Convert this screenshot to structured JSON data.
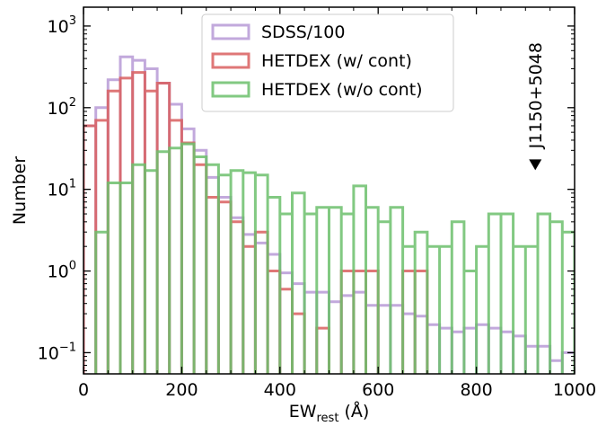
{
  "chart_data": {
    "type": "histogram",
    "xlabel_main": "EW",
    "xlabel_sub": "rest",
    "xlabel_unit": " (Å)",
    "ylabel": "Number",
    "xlim": [
      0,
      1000
    ],
    "ylim": [
      0.055,
      1700
    ],
    "yscale": "log",
    "grid": false,
    "legend_position": "top-center",
    "x_ticks": [
      0,
      200,
      400,
      600,
      800,
      1000
    ],
    "x_tick_labels": [
      "0",
      "200",
      "400",
      "600",
      "800",
      "1000"
    ],
    "y_ticks": [
      0.1,
      1,
      10,
      100,
      1000
    ],
    "y_tick_labels": [
      {
        "base": "10",
        "exp": "−1"
      },
      {
        "base": "10",
        "exp": "0"
      },
      {
        "base": "10",
        "exp": "1"
      },
      {
        "base": "10",
        "exp": "2"
      },
      {
        "base": "10",
        "exp": "3"
      }
    ],
    "bin_width": 25,
    "series": [
      {
        "name": "SDSS/100",
        "color": "#b79ad6",
        "values": [
          60,
          100,
          220,
          420,
          380,
          300,
          200,
          110,
          55,
          30,
          14,
          8,
          4.5,
          2.8,
          2.2,
          1.6,
          0.95,
          0.7,
          0.55,
          0.55,
          0.42,
          0.5,
          0.55,
          0.38,
          0.38,
          0.38,
          0.3,
          0.28,
          0.22,
          0.2,
          0.18,
          0.2,
          0.22,
          0.2,
          0.18,
          0.16,
          0.12,
          0.12,
          0.08,
          0.1
        ]
      },
      {
        "name": "HETDEX (w/ cont)",
        "color": "#d95f5f",
        "values": [
          60,
          70,
          160,
          230,
          270,
          160,
          200,
          70,
          37,
          20,
          8,
          7,
          4,
          2,
          3,
          1,
          0.6,
          0.3,
          0,
          0.2,
          0,
          1,
          1,
          1,
          0,
          0,
          1,
          1,
          0,
          0,
          0,
          0,
          0,
          0,
          0,
          0,
          0,
          0,
          0,
          0
        ]
      },
      {
        "name": "HETDEX (w/o cont)",
        "color": "#6cbf6c",
        "values": [
          0,
          3,
          12,
          12,
          20,
          17,
          29,
          32,
          36,
          25,
          20,
          15,
          17,
          16,
          15,
          8,
          5,
          9,
          5,
          6,
          6,
          5,
          11,
          6,
          4,
          6,
          2,
          3,
          2,
          2,
          4,
          1,
          2,
          5,
          5,
          2,
          2,
          5,
          4,
          3
        ]
      }
    ],
    "annotations": [
      {
        "text": "J1150+5048",
        "x": 920,
        "y": 20,
        "marker": "down-triangle"
      }
    ]
  }
}
